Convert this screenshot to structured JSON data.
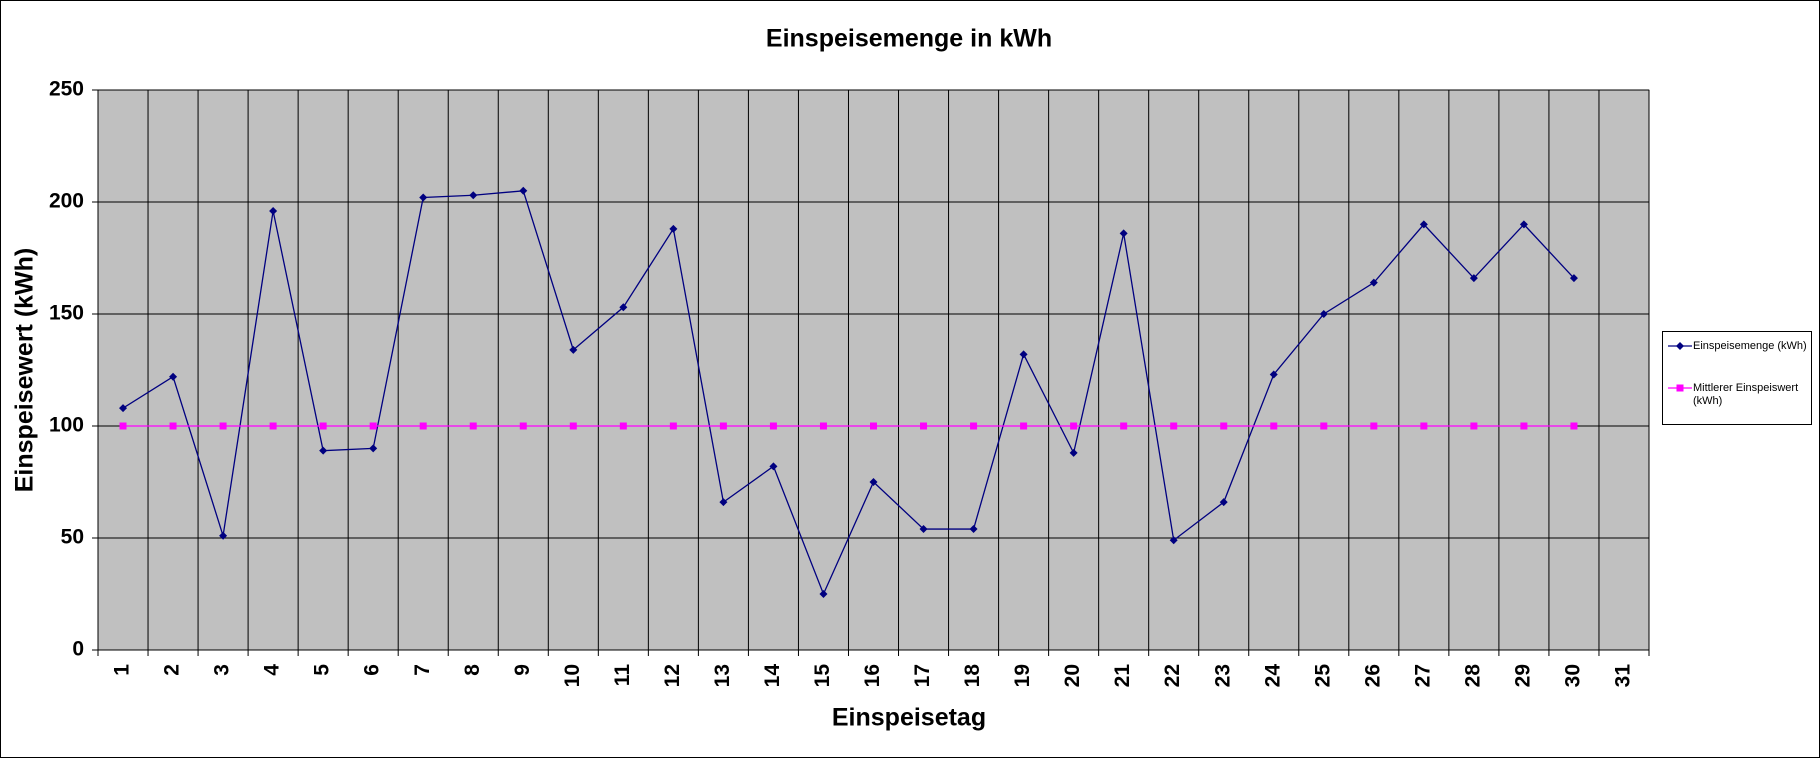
{
  "chart_data": {
    "type": "line",
    "title": "Einspeisemenge in kWh",
    "x_label": "Einspeisetag",
    "y_label": "Einspeisewert  (kWh)",
    "categories": [
      "1",
      "2",
      "3",
      "4",
      "5",
      "6",
      "7",
      "8",
      "9",
      "10",
      "11",
      "12",
      "13",
      "14",
      "15",
      "16",
      "17",
      "18",
      "19",
      "20",
      "21",
      "22",
      "23",
      "24",
      "25",
      "26",
      "27",
      "28",
      "29",
      "30",
      "31"
    ],
    "series": [
      {
        "name": "Einspeisemenge (kWh)",
        "color": "#000080",
        "marker": "diamond",
        "values": [
          108,
          122,
          51,
          196,
          89,
          90,
          202,
          203,
          205,
          134,
          153,
          188,
          66,
          82,
          25,
          75,
          54,
          54,
          132,
          88,
          186,
          49,
          66,
          123,
          150,
          164,
          190,
          166,
          190,
          166,
          null
        ]
      },
      {
        "name": "Mittlerer Einspeiswert (kWh)",
        "color": "#ff00ff",
        "marker": "square",
        "values": [
          100,
          100,
          100,
          100,
          100,
          100,
          100,
          100,
          100,
          100,
          100,
          100,
          100,
          100,
          100,
          100,
          100,
          100,
          100,
          100,
          100,
          100,
          100,
          100,
          100,
          100,
          100,
          100,
          100,
          100,
          null
        ]
      }
    ],
    "ylim": [
      0,
      250
    ],
    "yticks": [
      0,
      50,
      100,
      150,
      200,
      250
    ],
    "grid": true,
    "plot_background": "#c0c0c0",
    "legend": "right"
  }
}
